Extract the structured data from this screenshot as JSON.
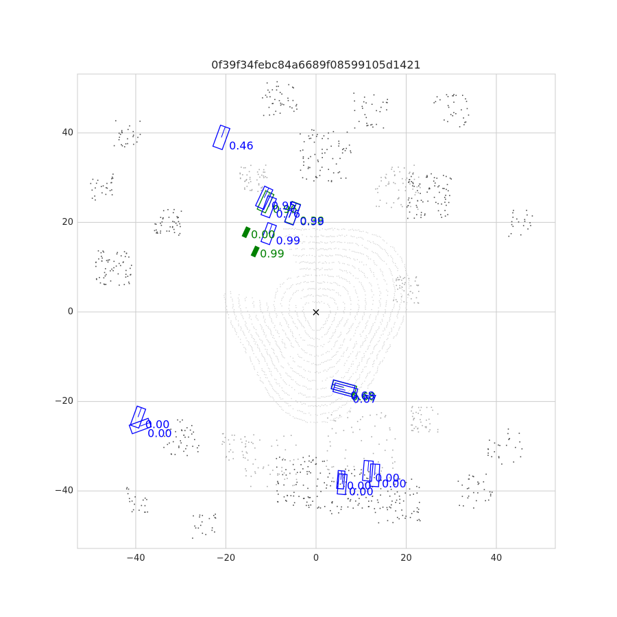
{
  "chart_data": {
    "type": "scatter",
    "title": "0f39f34febc84a6689f08599105d1421",
    "xlabel": "",
    "ylabel": "",
    "xlim": [
      -53,
      53
    ],
    "ylim": [
      -53,
      53
    ],
    "grid": true,
    "aspect": "equal",
    "x_ticks": [
      -40,
      -20,
      0,
      20,
      40
    ],
    "y_ticks": [
      -40,
      -20,
      0,
      20,
      40
    ],
    "ego_marker": {
      "x": 0,
      "y": 0,
      "symbol": "×"
    },
    "colors": {
      "prediction": "#0000ff",
      "ground_truth": "#008000",
      "grid": "#cccccc",
      "frame": "#cccccc",
      "points_near": "#d3d3d3",
      "points_mid": "#a9a9a9",
      "points_far": "#4a4a4a"
    },
    "predictions": [
      {
        "x": -21.0,
        "y": 39.0,
        "w": 2.2,
        "l": 5.0,
        "yaw": 20,
        "score": "0.46"
      },
      {
        "x": -11.5,
        "y": 25.5,
        "w": 2.0,
        "l": 4.8,
        "yaw": 25,
        "score": "0.95"
      },
      {
        "x": -10.5,
        "y": 23.5,
        "w": 2.0,
        "l": 4.5,
        "yaw": 20,
        "score": "0.76"
      },
      {
        "x": -5.2,
        "y": 22.0,
        "w": 2.0,
        "l": 4.8,
        "yaw": 20,
        "score": "0.99"
      },
      {
        "x": -10.5,
        "y": 17.5,
        "w": 2.0,
        "l": 4.5,
        "yaw": 20,
        "score": "0.99"
      },
      {
        "x": 6.0,
        "y": -16.8,
        "w": 2.0,
        "l": 5.0,
        "yaw": -75,
        "score": "0.68"
      },
      {
        "x": 6.5,
        "y": -17.5,
        "w": 2.0,
        "l": 5.2,
        "yaw": -75,
        "score": "0.67"
      },
      {
        "x": -39.5,
        "y": -23.5,
        "w": 2.0,
        "l": 4.5,
        "yaw": 20,
        "score": "0.00"
      },
      {
        "x": -39.0,
        "y": -25.5,
        "w": 2.0,
        "l": 4.5,
        "yaw": 70,
        "score": "0.00"
      },
      {
        "x": 5.5,
        "y": -37.5,
        "w": 1.5,
        "l": 4.0,
        "yaw": 5,
        "score": "0.00"
      },
      {
        "x": 5.8,
        "y": -38.5,
        "w": 1.8,
        "l": 4.5,
        "yaw": 5,
        "score": "0.00"
      },
      {
        "x": 11.5,
        "y": -35.5,
        "w": 2.0,
        "l": 4.5,
        "yaw": 5,
        "score": "0.00"
      },
      {
        "x": 13.0,
        "y": -36.5,
        "w": 2.0,
        "l": 5.0,
        "yaw": 3,
        "score": "0.00"
      }
    ],
    "ground_truth": [
      {
        "x": -11.2,
        "y": 24.6,
        "w": 2.0,
        "l": 4.5,
        "yaw": 25,
        "score": "0.96"
      },
      {
        "x": -5.2,
        "y": 22.1,
        "w": 2.0,
        "l": 4.8,
        "yaw": 20,
        "score": "0.38"
      },
      {
        "x": -15.5,
        "y": 17.8,
        "w": 0.9,
        "l": 2.2,
        "yaw": 25,
        "score": "0.00"
      },
      {
        "x": -13.5,
        "y": 13.5,
        "w": 0.9,
        "l": 2.2,
        "yaw": 25,
        "score": "0.99"
      },
      {
        "x": 6.2,
        "y": -16.9,
        "w": 2.0,
        "l": 5.3,
        "yaw": -75,
        "score": "0.68"
      }
    ],
    "label_offsets_note_free": true
  }
}
